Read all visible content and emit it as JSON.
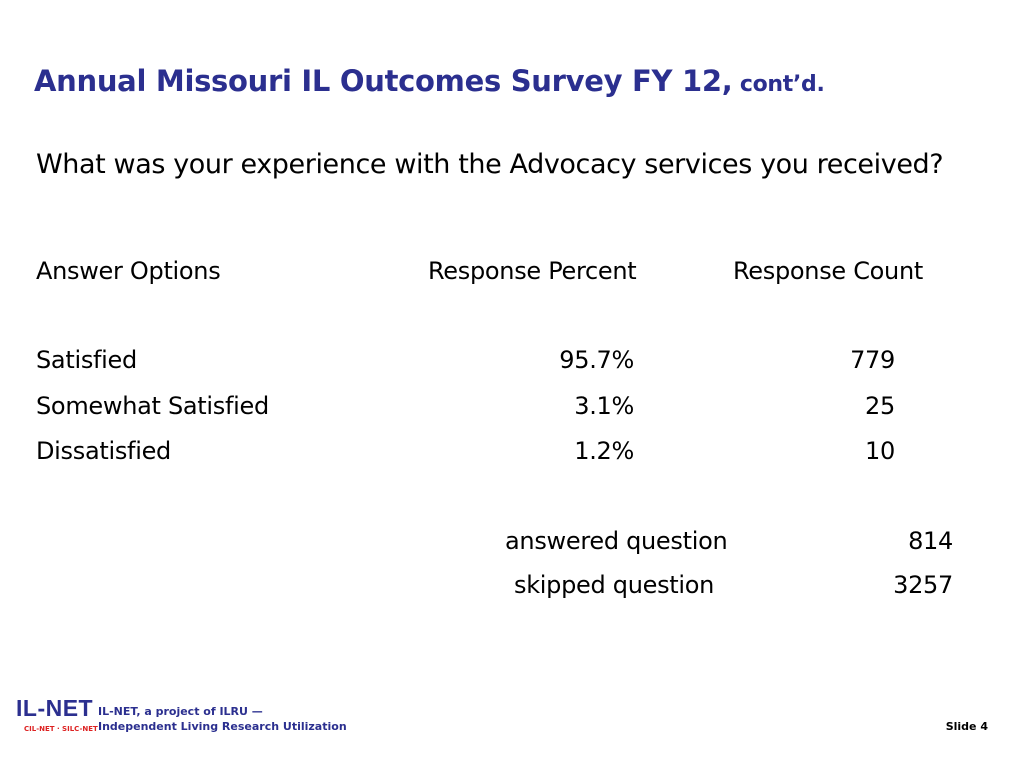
{
  "slide": {
    "title": "Annual  Missouri IL Outcomes Survey FY 12,",
    "title_suffix": " cont’d.",
    "question": "What was your experience with the Advocacy services you received?",
    "number_label": "Slide 4"
  },
  "table": {
    "headers": [
      "Answer Options",
      "Response Percent",
      "Response Count"
    ],
    "rows": [
      {
        "option": "Satisfied",
        "percent": "95.7%",
        "count": "779"
      },
      {
        "option": "Somewhat Satisfied",
        "percent": "3.1%",
        "count": "25"
      },
      {
        "option": "Dissatisfied",
        "percent": "1.2%",
        "count": "10"
      }
    ],
    "summary": [
      {
        "label": "answered question",
        "value": "814"
      },
      {
        "label": "skipped question",
        "value": "3257"
      }
    ]
  },
  "footer": {
    "logo_text": "IL-NET",
    "logo_subtext": "CIL-NET · SILC-NET",
    "tagline_line1": "IL-NET, a project of ILRU —",
    "tagline_line2": "Independent Living Research Utilization"
  },
  "colors": {
    "title": "#2b2f8f",
    "logo_accent": "#dd2222"
  }
}
